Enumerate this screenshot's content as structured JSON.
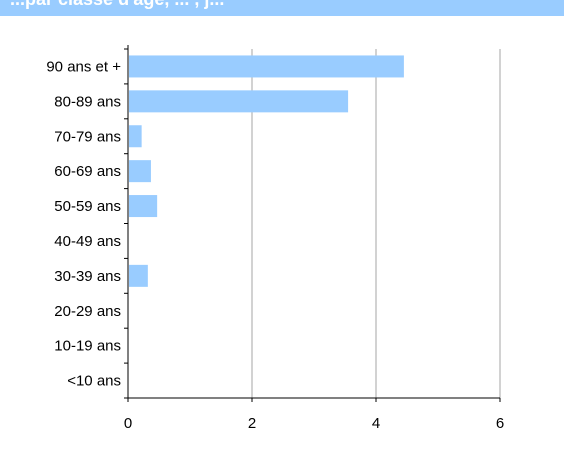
{
  "title": "...par classe d'âge, ... , j...",
  "colors": {
    "bar": "#99ccff",
    "title_bar": "#99ccff",
    "title_text": "#ffffff",
    "grid": "#a6a6a6",
    "axis": "#000000"
  },
  "chart_data": {
    "type": "bar",
    "orientation": "horizontal",
    "categories": [
      "90 ans et +",
      "80-89 ans",
      "70-79 ans",
      "60-69 ans",
      "50-59 ans",
      "40-49 ans",
      "30-39 ans",
      "20-29 ans",
      "10-19 ans",
      "<10 ans"
    ],
    "values": [
      4.45,
      3.55,
      0.22,
      0.37,
      0.47,
      0,
      0.32,
      0,
      0,
      0
    ],
    "xlim": [
      0,
      6
    ],
    "xticks": [
      "0",
      "2",
      "4",
      "6"
    ],
    "grid": "vertical",
    "legend": "none"
  }
}
